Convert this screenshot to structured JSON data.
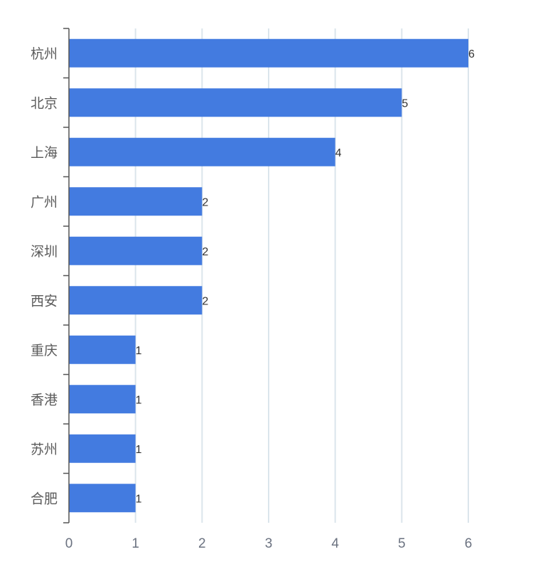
{
  "chart_data": {
    "type": "bar",
    "orientation": "horizontal",
    "categories": [
      "杭州",
      "北京",
      "上海",
      "广州",
      "深圳",
      "西安",
      "重庆",
      "香港",
      "苏州",
      "合肥"
    ],
    "values": [
      6,
      5,
      4,
      2,
      2,
      2,
      1,
      1,
      1,
      1
    ],
    "xlim": [
      0,
      6
    ],
    "x_ticks": [
      "0",
      "1",
      "2",
      "3",
      "4",
      "5",
      "6"
    ],
    "grid": "vertical",
    "data_labels": true,
    "colors": {
      "bar": "#437be0",
      "grid": "#dbe5ec",
      "axis": "#555555"
    }
  }
}
